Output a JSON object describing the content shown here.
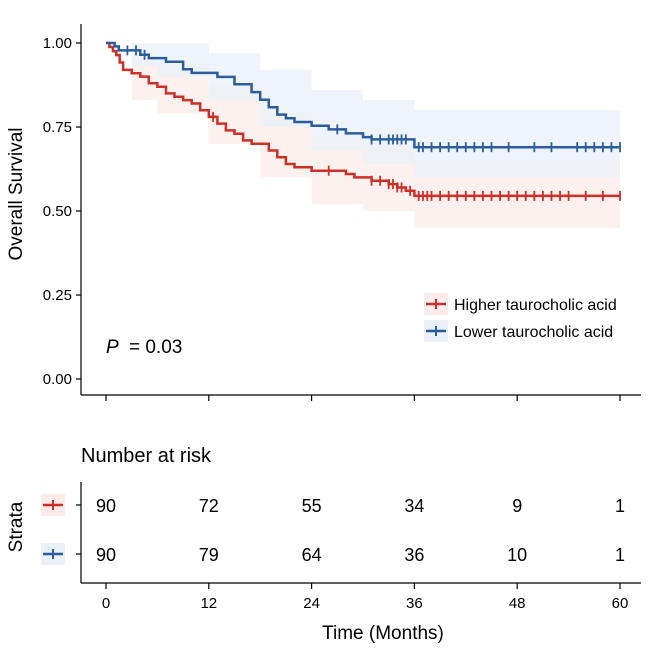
{
  "chart_data": {
    "type": "line",
    "subtype": "kaplan-meier",
    "title": "",
    "xlabel": "Time (Months)",
    "ylabel": "Overall Survival",
    "xlim": [
      0,
      60
    ],
    "ylim": [
      0,
      1
    ],
    "x_ticks": [
      "0",
      "12",
      "24",
      "36",
      "48",
      "60"
    ],
    "y_ticks": [
      "0.00",
      "0.25",
      "0.50",
      "0.75",
      "1.00"
    ],
    "annotation": {
      "p_label": "P",
      "p_value": "= 0.03"
    },
    "legend_position": "bottom-right",
    "series": [
      {
        "name": "Higher taurocholic acid",
        "color": "#cc2f27",
        "steps": [
          [
            0,
            1.0
          ],
          [
            0.4,
            0.988
          ],
          [
            0.8,
            0.976
          ],
          [
            1.2,
            0.964
          ],
          [
            1.6,
            0.942
          ],
          [
            2,
            0.92
          ],
          [
            3,
            0.91
          ],
          [
            4,
            0.9
          ],
          [
            5,
            0.88
          ],
          [
            6,
            0.87
          ],
          [
            7,
            0.85
          ],
          [
            8,
            0.84
          ],
          [
            9,
            0.83
          ],
          [
            10,
            0.82
          ],
          [
            11,
            0.8
          ],
          [
            12,
            0.78
          ],
          [
            13,
            0.76
          ],
          [
            14,
            0.74
          ],
          [
            15,
            0.73
          ],
          [
            16,
            0.71
          ],
          [
            17,
            0.7
          ],
          [
            19,
            0.68
          ],
          [
            20,
            0.66
          ],
          [
            21,
            0.64
          ],
          [
            22,
            0.63
          ],
          [
            24,
            0.62
          ],
          [
            27,
            0.62
          ],
          [
            28,
            0.61
          ],
          [
            29,
            0.6
          ],
          [
            31,
            0.59
          ],
          [
            33,
            0.58
          ],
          [
            34,
            0.57
          ],
          [
            35,
            0.56
          ],
          [
            36,
            0.545
          ],
          [
            60,
            0.545
          ]
        ],
        "band_upper": [
          [
            0,
            1.0
          ],
          [
            3,
            0.96
          ],
          [
            6,
            0.94
          ],
          [
            12,
            0.87
          ],
          [
            18,
            0.79
          ],
          [
            24,
            0.72
          ],
          [
            30,
            0.7
          ],
          [
            36,
            0.65
          ],
          [
            60,
            0.65
          ]
        ],
        "band_lower": [
          [
            0,
            1.0
          ],
          [
            3,
            0.83
          ],
          [
            6,
            0.79
          ],
          [
            12,
            0.7
          ],
          [
            18,
            0.6
          ],
          [
            24,
            0.52
          ],
          [
            30,
            0.5
          ],
          [
            36,
            0.45
          ],
          [
            60,
            0.45
          ]
        ],
        "censor_times": [
          12.5,
          26,
          31,
          32,
          33,
          33.5,
          34,
          34.5,
          35.5,
          36.5,
          37,
          37.5,
          38,
          39,
          40,
          41,
          42,
          43,
          44,
          45,
          46,
          47,
          48,
          49,
          50,
          51,
          52,
          53,
          54,
          56,
          58,
          60
        ]
      },
      {
        "name": "Lower taurocholic acid",
        "color": "#2b5c9c",
        "steps": [
          [
            0,
            1.0
          ],
          [
            1,
            0.99
          ],
          [
            1.5,
            0.978
          ],
          [
            4,
            0.965
          ],
          [
            5,
            0.955
          ],
          [
            7,
            0.944
          ],
          [
            9,
            0.922
          ],
          [
            10,
            0.911
          ],
          [
            13,
            0.899
          ],
          [
            15,
            0.877
          ],
          [
            17,
            0.854
          ],
          [
            18,
            0.831
          ],
          [
            19,
            0.809
          ],
          [
            20,
            0.787
          ],
          [
            21,
            0.776
          ],
          [
            22,
            0.765
          ],
          [
            24,
            0.754
          ],
          [
            26,
            0.743
          ],
          [
            28,
            0.731
          ],
          [
            30,
            0.72
          ],
          [
            31,
            0.713
          ],
          [
            36,
            0.69
          ],
          [
            60,
            0.69
          ]
        ],
        "band_upper": [
          [
            0,
            1.0
          ],
          [
            3,
            1.0
          ],
          [
            6,
            1.0
          ],
          [
            12,
            0.97
          ],
          [
            18,
            0.92
          ],
          [
            24,
            0.86
          ],
          [
            30,
            0.83
          ],
          [
            36,
            0.8
          ],
          [
            60,
            0.8
          ]
        ],
        "band_lower": [
          [
            0,
            1.0
          ],
          [
            3,
            0.93
          ],
          [
            6,
            0.9
          ],
          [
            12,
            0.83
          ],
          [
            18,
            0.75
          ],
          [
            24,
            0.68
          ],
          [
            30,
            0.64
          ],
          [
            36,
            0.6
          ],
          [
            60,
            0.6
          ]
        ],
        "censor_times": [
          2.5,
          3.5,
          4.5,
          27,
          31,
          32,
          33,
          33.5,
          34,
          34.5,
          35,
          36.5,
          37,
          38,
          39,
          40,
          41,
          42,
          43,
          44,
          45,
          47,
          50,
          52,
          55,
          56,
          57,
          58,
          59,
          60
        ]
      }
    ]
  },
  "risk_table": {
    "title": "Number at risk",
    "ylabel": "Strata",
    "xlabel": "Time (Months)",
    "times": [
      "0",
      "12",
      "24",
      "36",
      "48",
      "60"
    ],
    "rows": [
      {
        "color": "#cc2f27",
        "values": [
          "90",
          "72",
          "55",
          "34",
          "9",
          "1"
        ]
      },
      {
        "color": "#2b5c9c",
        "values": [
          "90",
          "79",
          "64",
          "36",
          "10",
          "1"
        ]
      }
    ]
  }
}
